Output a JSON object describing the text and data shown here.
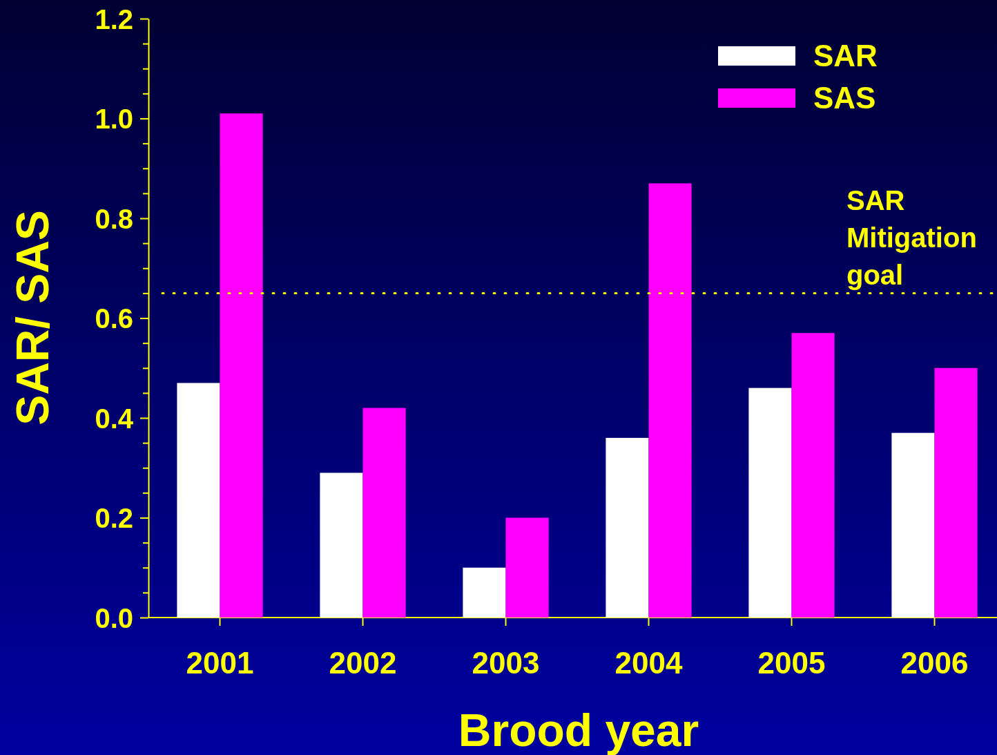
{
  "chart_data": {
    "type": "bar",
    "xlabel": "Brood year",
    "ylabel": "SAR/ SAS",
    "categories": [
      "2001",
      "2002",
      "2003",
      "2004",
      "2005",
      "2006"
    ],
    "series": [
      {
        "name": "SAR",
        "color": "#ffffff",
        "values": [
          0.47,
          0.29,
          0.1,
          0.36,
          0.46,
          0.37
        ]
      },
      {
        "name": "SAS",
        "color": "#ff00ff",
        "values": [
          1.01,
          0.42,
          0.2,
          0.87,
          0.57,
          0.5
        ]
      }
    ],
    "ylim": [
      0,
      1.2
    ],
    "yticks": [
      {
        "value": 0,
        "label": "0.0"
      },
      {
        "value": 0.05,
        "label": null
      },
      {
        "value": 0.1,
        "label": null
      },
      {
        "value": 0.15,
        "label": null
      },
      {
        "value": 0.2,
        "label": "0.2"
      },
      {
        "value": 0.25,
        "label": null
      },
      {
        "value": 0.3,
        "label": null
      },
      {
        "value": 0.35,
        "label": null
      },
      {
        "value": 0.4,
        "label": "0.4"
      },
      {
        "value": 0.45,
        "label": null
      },
      {
        "value": 0.5,
        "label": null
      },
      {
        "value": 0.55,
        "label": null
      },
      {
        "value": 0.6,
        "label": "0.6"
      },
      {
        "value": 0.65,
        "label": null
      },
      {
        "value": 0.7,
        "label": null
      },
      {
        "value": 0.75,
        "label": null
      },
      {
        "value": 0.8,
        "label": "0.8"
      },
      {
        "value": 0.85,
        "label": null
      },
      {
        "value": 0.9,
        "label": null
      },
      {
        "value": 0.95,
        "label": null
      },
      {
        "value": 1.0,
        "label": "1.0"
      },
      {
        "value": 1.05,
        "label": null
      },
      {
        "value": 1.1,
        "label": null
      },
      {
        "value": 1.15,
        "label": null
      },
      {
        "value": 1.2,
        "label": "1.2"
      }
    ],
    "ref_lines": [
      {
        "axis": "y",
        "value": 0.65,
        "label": "SAR Mitigation goal",
        "color": "#ffff00",
        "line_style": "dotted"
      }
    ],
    "legend": "top right",
    "grid": false
  }
}
